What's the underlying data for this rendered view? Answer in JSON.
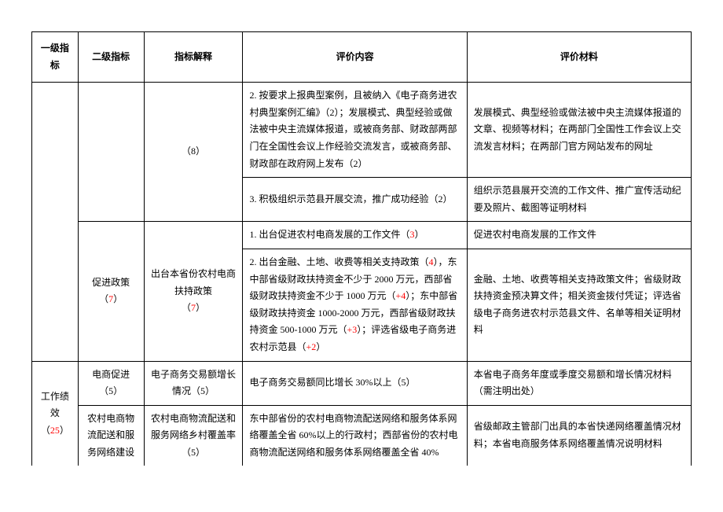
{
  "headers": {
    "col1": "一级指标",
    "col2": "二级指标",
    "col3": "指标解释",
    "col4": "评价内容",
    "col5": "评价材料"
  },
  "rows": {
    "r1": {
      "c3": "（8）",
      "c4": "2. 按要求上报典型案例，且被纳入《电子商务进农村典型案例汇编》（2）；发展模式、典型经验或做法被中央主流媒体报道，或被商务部、财政部两部门在全国性会议上作经验交流发言，或被商务部、财政部在政府网上发布（2）",
      "c5": "发展模式、典型经验或做法被中央主流媒体报道的文章、视频等材料；在两部门全国性工作会议上交流发言材料；在两部门官方网站发布的网址"
    },
    "r2": {
      "c4": "3. 积极组织示范县开展交流，推广成功经验（2）",
      "c5": "组织示范县展开交流的工作文件、推广宣传活动纪要及照片、截图等证明材料"
    },
    "r3": {
      "c4_prefix": "1. 出台促进农村电商发展的工作文件（",
      "c4_num": "3",
      "c4_suffix": "）",
      "c5": "促进农村电商发展的工作文件"
    },
    "r4": {
      "c2_prefix": "促进政策（",
      "c2_num": "7",
      "c2_suffix": "）",
      "c3_line1": "出台本省份农村电商扶持政策",
      "c3_num": "7",
      "c4_p1": "2. 出台金融、土地、收费等相关支持政策（",
      "c4_n1": "4",
      "c4_p2": "），东中部省级财政扶持资金不少于 2000 万元，西部省级财政扶持资金不少于 1000 万元（",
      "c4_n2": "+4",
      "c4_p3": "）；东中部省级财政扶持资金 1000-2000 万元，西部省级财政扶持资金 500-1000 万元（",
      "c4_n3": "+3",
      "c4_p4": "）；评选省级电子商务进农村示范县（",
      "c4_n4": "+2",
      "c4_p5": "）",
      "c5": "金融、土地、收费等相关支持政策文件；省级财政扶持资金预决算文件；相关资金拨付凭证；评选省级电子商务进农村示范县文件、名单等相关证明材料"
    },
    "r5": {
      "c1_line1": "工作绩效",
      "c1_num": "25",
      "c2": "电商促进（5）",
      "c3": "电子商务交易额增长情况（5）",
      "c4": "电子商务交易额同比增长 30%以上（5）",
      "c5": "本省电子商务年度或季度交易额和增长情况材料（需注明出处）"
    },
    "r6": {
      "c2": "农村电商物流配送和服务网络建设",
      "c3": "农村电商物流配送和服务网络乡村覆盖率（5）",
      "c4": "东中部省份的农村电商物流配送网络和服务体系网络覆盖全省 60%以上的行政村；西部省份的农村电商物流配送网络和服务体系网络覆盖全省 40%",
      "c5": "省级邮政主管部门出具的本省快递网络覆盖情况材料；本省电商服务体系网络覆盖情况说明材料"
    }
  }
}
